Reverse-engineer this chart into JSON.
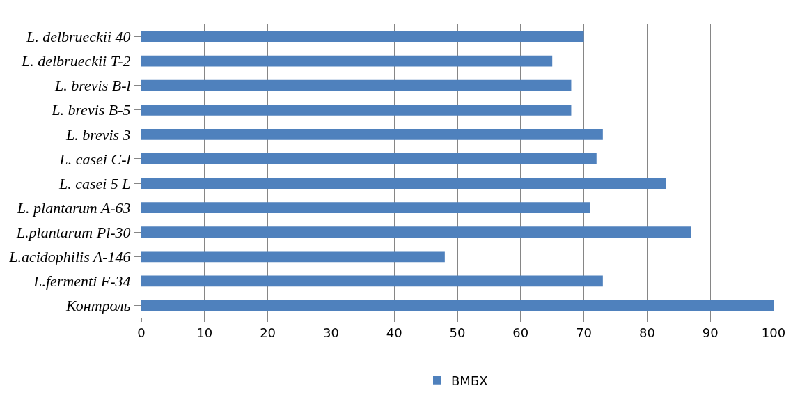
{
  "chart_data": {
    "type": "bar",
    "orientation": "horizontal",
    "categories": [
      "L. delbrueckii 40",
      "L. delbrueckii T-2",
      "L. brevis B-l",
      "L. brevis B-5",
      "L. brevis 3",
      "L. casei C-l",
      "L. casei 5 L",
      "L. plantarum A-63",
      "L.plantarum Pl-30",
      "L.acidophilis A-146",
      "L.fermenti F-34",
      "Контроль"
    ],
    "series": [
      {
        "name": "ВМБХ",
        "color": "#4f81bd",
        "values": [
          70,
          65,
          68,
          68,
          73,
          72,
          83,
          71,
          87,
          48,
          73,
          100
        ]
      }
    ],
    "xlim": [
      0,
      100
    ],
    "xticks": [
      0,
      10,
      20,
      30,
      40,
      50,
      60,
      70,
      80,
      90,
      100
    ],
    "grid": "x",
    "legend": "bottom"
  }
}
